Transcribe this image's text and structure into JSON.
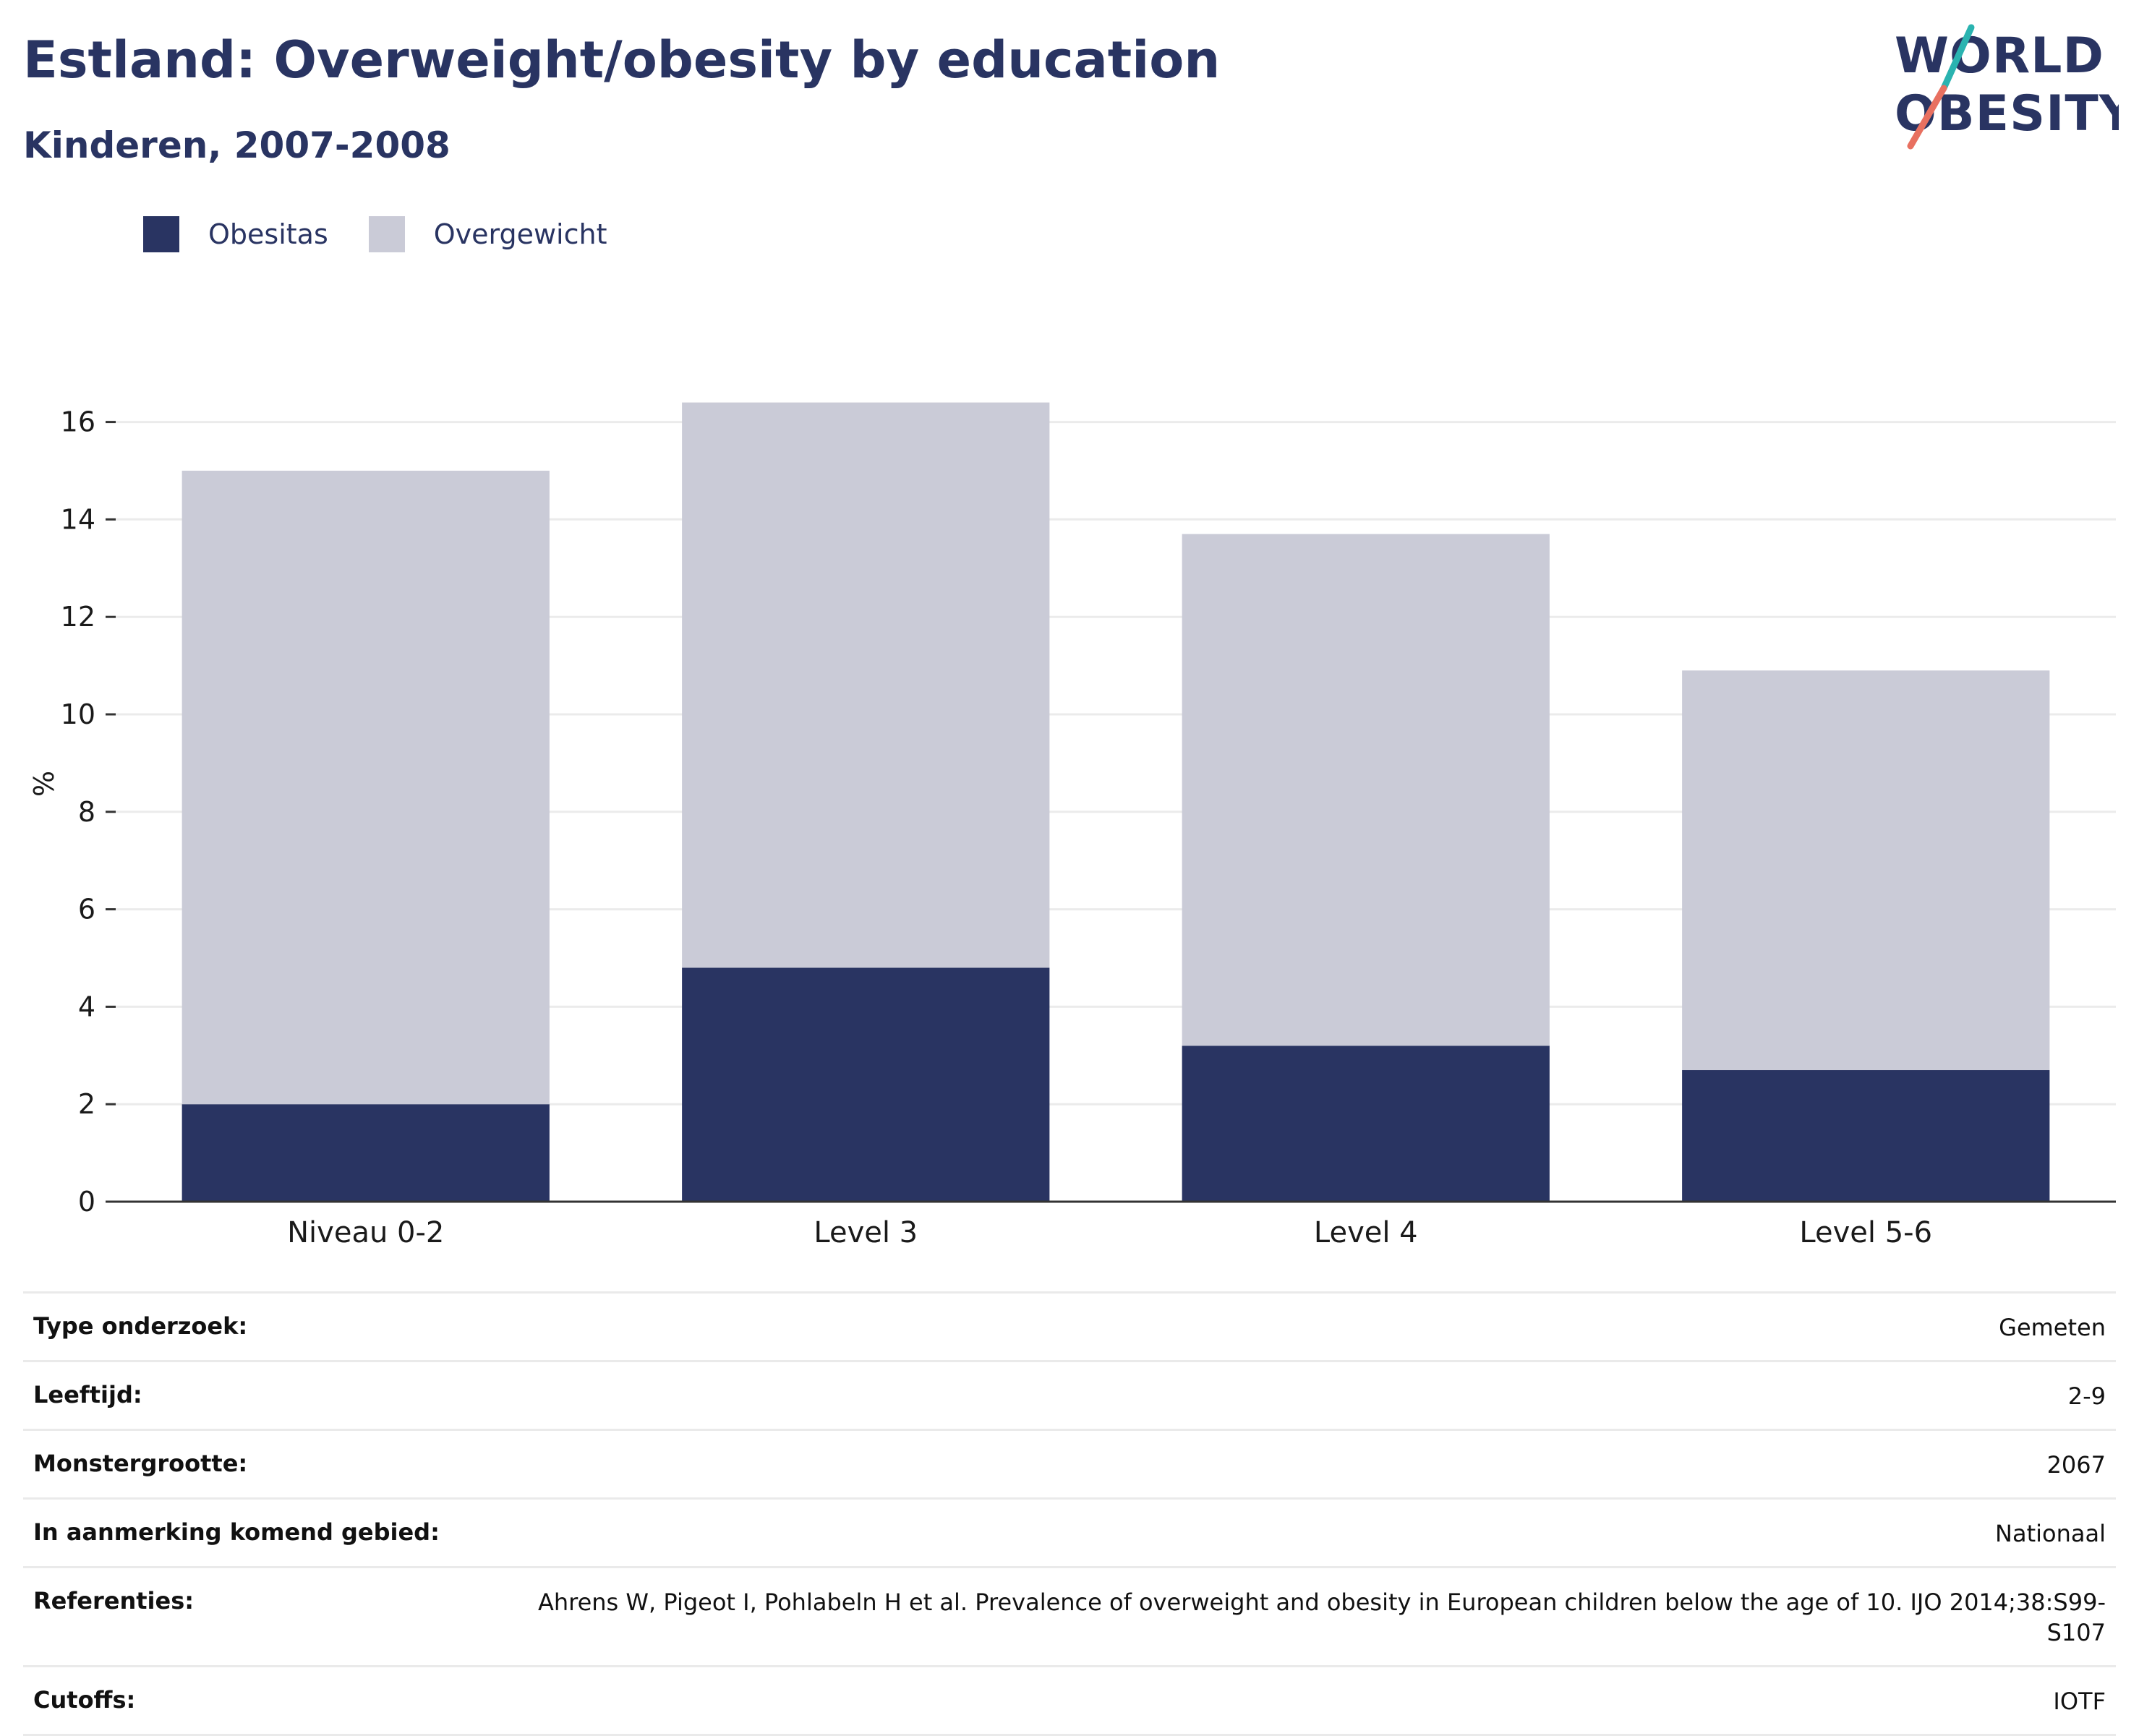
{
  "header": {
    "title": "Estland: Overweight/obesity by education",
    "subtitle": "Kinderen, 2007-2008"
  },
  "logo": {
    "line1": "WORLD",
    "line2": "OBESITY"
  },
  "colors": {
    "obesity": "#293462",
    "overweight": "#cacbd7",
    "title": "#293462",
    "logo_teal": "#2ab3b0",
    "logo_coral": "#e87060"
  },
  "chart_data": {
    "type": "bar",
    "stacked": true,
    "categories": [
      "Niveau 0-2",
      "Level 3",
      "Level 4",
      "Level 5-6"
    ],
    "series": [
      {
        "name": "Obesitas",
        "color": "#293462",
        "values": [
          2.0,
          4.8,
          3.2,
          2.7
        ]
      },
      {
        "name": "Overgewicht",
        "color": "#cacbd7",
        "values": [
          13.0,
          11.6,
          10.5,
          8.2
        ]
      }
    ],
    "ylabel": "%",
    "ylim": [
      0,
      16.5
    ],
    "yticks": [
      0,
      2,
      4,
      6,
      8,
      10,
      12,
      14,
      16
    ],
    "grid": true,
    "legend_position": "top-left"
  },
  "info": [
    {
      "key": "Type onderzoek:",
      "value": "Gemeten"
    },
    {
      "key": "Leeftijd:",
      "value": "2-9"
    },
    {
      "key": "Monstergrootte:",
      "value": "2067"
    },
    {
      "key": "In aanmerking komend gebied:",
      "value": "Nationaal"
    },
    {
      "key": "Referenties:",
      "value": "Ahrens W, Pigeot I, Pohlabeln H et al. Prevalence of overweight and obesity in European children below the age of 10. IJO 2014;38:S99-S107"
    },
    {
      "key": "Cutoffs:",
      "value": "IOTF"
    }
  ]
}
